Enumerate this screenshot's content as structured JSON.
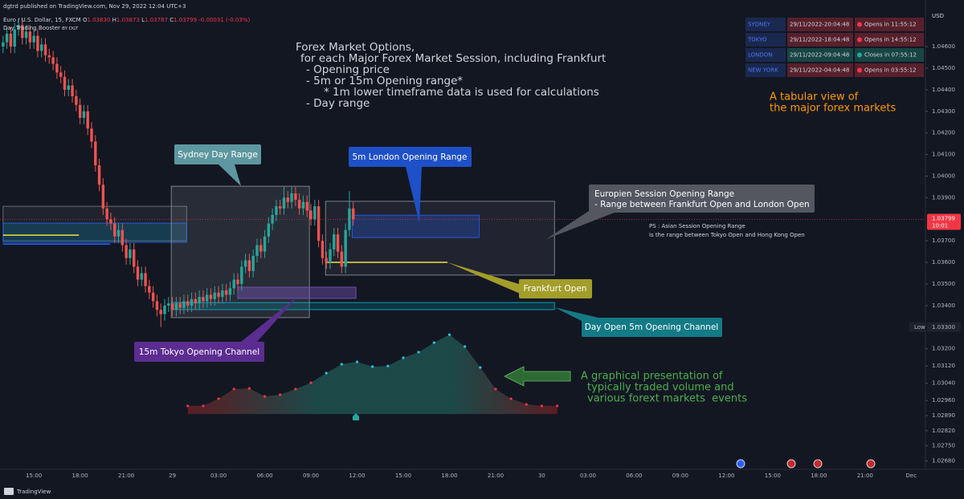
{
  "header": {
    "publisher": "dgtrd published on TradingView.com, Nov 29, 2022 12:04 UTC+3",
    "symbol": "Euro / U.S. Dollar, 15, FXCM",
    "ohlc": [
      [
        "O",
        "1.03830"
      ],
      [
        "H",
        "1.03873"
      ],
      [
        "L",
        "1.03787"
      ],
      [
        "C",
        "1.03799"
      ]
    ],
    "change": "-0.00031 (-0.03%)",
    "indicator": "Day Trading Booster",
    "indicator_by": "BY DGT",
    "currency": "USD"
  },
  "table": {
    "rows": [
      [
        "SYDNEY",
        "29/11/2022-20:04:48",
        "Opens in 11:55:12"
      ],
      [
        "TOKYO",
        "29/11/2022-18:04:48",
        "Opens in 14:55:12"
      ],
      [
        "LONDON",
        "29/11/2022-09:04:48",
        "Closes in 07:55:12"
      ],
      [
        "NEW YORK",
        "29/11/2022-04:04:48",
        "Opens in 03:55:12"
      ]
    ],
    "status_colors": [
      "#f23645",
      "#f23645",
      "#22ab94",
      "#f23645"
    ]
  },
  "annotations": {
    "options": [
      "Forex Market Options,",
      "for each Major Forex Market Session, including Frankfurt",
      "- Opening price",
      "- 5m or 15m Opening range*",
      "* 1m lower timeframe data is used for calculations",
      "- Day range"
    ],
    "sydney": "Sydney Day Range",
    "london": "5m London Opening Range",
    "europe": [
      "Europien Session Opening Range",
      "- Range between Frankfurt Open and London Open"
    ],
    "ps": [
      "PS : Asian Session Opening Range",
      "is the range between Tokyo Open and Hong Kong Open"
    ],
    "frankfurt": "Frankfurt Open",
    "day_open": "Day Open 5m Opening Channel",
    "tokyo": "15m Tokyo Opening Channel",
    "graphical": [
      "A graphical presentation of",
      "typically traded volume and",
      "various forext markets  events"
    ],
    "tabular": [
      "A tabular view of",
      "the major forex markets"
    ]
  },
  "footer": "TradingView",
  "chart_data": {
    "type": "candlestick",
    "categories": [
      null,
      null,
      null,
      null,
      null,
      null,
      null,
      null,
      null,
      null,
      null,
      null,
      null,
      null,
      null,
      null,
      null,
      null,
      null,
      null,
      null,
      null,
      null,
      null,
      null,
      null,
      null,
      null,
      null,
      null,
      null,
      null,
      null,
      null,
      null,
      null,
      null,
      null,
      null,
      null,
      null,
      null,
      null,
      null,
      null,
      null,
      null,
      null,
      null,
      null,
      null,
      null,
      null,
      null,
      null,
      null,
      null,
      null,
      null,
      null,
      null,
      null,
      null,
      null,
      null,
      null,
      null,
      null,
      null,
      null,
      null,
      null,
      null,
      null,
      null,
      null,
      null,
      null,
      null,
      null,
      null,
      null,
      null,
      null,
      null,
      null,
      null,
      null,
      null,
      null,
      null,
      null
    ],
    "open": [
      1.046,
      1.0462,
      1.0466,
      1.046,
      1.0468,
      1.047,
      1.0464,
      1.0467,
      1.0462,
      1.0465,
      1.0458,
      1.0461,
      1.0456,
      1.0455,
      1.0452,
      1.0448,
      1.0446,
      1.044,
      1.0442,
      1.0437,
      1.0433,
      1.0427,
      1.043,
      1.0422,
      1.0416,
      1.0405,
      1.0396,
      1.0385,
      1.038,
      1.0378,
      1.0372,
      1.0375,
      1.0368,
      1.0362,
      1.0366,
      1.0358,
      1.0352,
      1.0355,
      1.0349,
      1.0346,
      1.0342,
      1.0338,
      1.0336,
      1.034,
      1.0341,
      1.0338,
      1.0341,
      1.0339,
      1.0342,
      1.034,
      1.0343,
      1.0341,
      1.0344,
      1.0342,
      1.0345,
      1.0343,
      1.0346,
      1.0344,
      1.0347,
      1.0345,
      1.0348,
      1.0352,
      1.035,
      1.0358,
      1.0361,
      1.0356,
      1.0363,
      1.0368,
      1.0365,
      1.0372,
      1.0378,
      1.0382,
      1.0386,
      1.0385,
      1.039,
      1.0388,
      1.0392,
      1.0389,
      1.0385,
      1.0388,
      1.0384,
      1.038,
      1.0386,
      1.037,
      1.0362,
      1.036,
      1.0366,
      1.0373,
      1.0365,
      1.0358,
      1.0375,
      1.0385
    ],
    "high": [
      1.0465,
      1.0469,
      1.0469,
      1.0471,
      1.0473,
      1.0473,
      1.047,
      1.047,
      1.0468,
      1.0468,
      1.0464,
      1.0464,
      1.0459,
      1.0458,
      1.0455,
      1.0451,
      1.0449,
      1.0445,
      1.0445,
      1.044,
      1.0436,
      1.0433,
      1.0433,
      1.0425,
      1.0419,
      1.0408,
      1.0399,
      1.0388,
      1.0383,
      1.0381,
      1.0378,
      1.0378,
      1.0371,
      1.0369,
      1.0369,
      1.0361,
      1.0358,
      1.0358,
      1.0352,
      1.0349,
      1.0345,
      1.0341,
      1.0343,
      1.0344,
      1.0344,
      1.0344,
      1.0344,
      1.0345,
      1.0345,
      1.0346,
      1.0346,
      1.0347,
      1.0347,
      1.0348,
      1.0348,
      1.0349,
      1.0349,
      1.035,
      1.035,
      1.0351,
      1.0355,
      1.0355,
      1.0361,
      1.0364,
      1.0364,
      1.0366,
      1.0371,
      1.0371,
      1.0375,
      1.0381,
      1.0385,
      1.0389,
      1.0389,
      1.0395,
      1.0393,
      1.0395,
      1.0395,
      1.0392,
      1.0391,
      1.0391,
      1.0387,
      1.0389,
      1.0389,
      1.0373,
      1.0365,
      1.0369,
      1.0376,
      1.0376,
      1.0368,
      1.0378,
      1.0393,
      1.0388
    ],
    "low": [
      1.0457,
      1.0459,
      1.0457,
      1.0457,
      1.0465,
      1.0461,
      1.0461,
      1.0459,
      1.0459,
      1.0455,
      1.0455,
      1.0453,
      1.0452,
      1.0449,
      1.0445,
      1.0443,
      1.0437,
      1.0437,
      1.0434,
      1.043,
      1.0424,
      1.0424,
      1.0419,
      1.0413,
      1.0402,
      1.0393,
      1.0382,
      1.0377,
      1.0375,
      1.0369,
      1.0369,
      1.0365,
      1.0359,
      1.0359,
      1.0355,
      1.0349,
      1.0349,
      1.0346,
      1.0343,
      1.0339,
      1.0335,
      1.033,
      1.0333,
      1.0337,
      1.0335,
      1.0335,
      1.0336,
      1.0336,
      1.0337,
      1.0337,
      1.0338,
      1.0338,
      1.0339,
      1.0339,
      1.034,
      1.034,
      1.0341,
      1.0341,
      1.0342,
      1.0342,
      1.0345,
      1.0347,
      1.0347,
      1.0355,
      1.0353,
      1.0353,
      1.036,
      1.0362,
      1.0362,
      1.0369,
      1.0375,
      1.0379,
      1.0382,
      1.0382,
      1.0385,
      1.0385,
      1.0386,
      1.0382,
      1.0382,
      1.0381,
      1.0377,
      1.0377,
      1.0367,
      1.0359,
      1.0357,
      1.0357,
      1.0363,
      1.0362,
      1.0355,
      1.0355,
      1.0372,
      1.0377
    ],
    "close": [
      1.0462,
      1.0466,
      1.046,
      1.0468,
      1.047,
      1.0464,
      1.0467,
      1.0462,
      1.0465,
      1.0458,
      1.0461,
      1.0456,
      1.0455,
      1.0452,
      1.0448,
      1.0446,
      1.044,
      1.0442,
      1.0437,
      1.0433,
      1.0427,
      1.043,
      1.0422,
      1.0416,
      1.0405,
      1.0396,
      1.0385,
      1.038,
      1.0378,
      1.0372,
      1.0375,
      1.0368,
      1.0362,
      1.0366,
      1.0358,
      1.0352,
      1.0355,
      1.0349,
      1.0346,
      1.0342,
      1.0338,
      1.0336,
      1.034,
      1.0341,
      1.0338,
      1.0341,
      1.0339,
      1.0342,
      1.034,
      1.0343,
      1.0341,
      1.0344,
      1.0342,
      1.0345,
      1.0343,
      1.0346,
      1.0344,
      1.0347,
      1.0345,
      1.0348,
      1.0352,
      1.035,
      1.0358,
      1.0361,
      1.0356,
      1.0363,
      1.0368,
      1.0365,
      1.0372,
      1.0378,
      1.0382,
      1.0386,
      1.0385,
      1.039,
      1.0388,
      1.0392,
      1.0389,
      1.0385,
      1.0388,
      1.0384,
      1.038,
      1.0386,
      1.037,
      1.0362,
      1.036,
      1.0366,
      1.0373,
      1.0365,
      1.0358,
      1.0375,
      1.0385,
      1.038
    ],
    "colors": {
      "up": "#26a69a",
      "down": "#ef5350"
    },
    "xlim": [
      -0.8,
      239.7
    ],
    "xticks": [
      {
        "value": 8,
        "label": "15:00"
      },
      {
        "value": 20,
        "label": "18:00"
      },
      {
        "value": 32,
        "label": "21:00"
      },
      {
        "value": 44,
        "label": "29"
      },
      {
        "value": 56,
        "label": "03:00"
      },
      {
        "value": 68,
        "label": "06:00"
      },
      {
        "value": 80,
        "label": "09:00"
      },
      {
        "value": 92,
        "label": "12:00"
      },
      {
        "value": 104,
        "label": "15:00"
      },
      {
        "value": 116,
        "label": "18:00"
      },
      {
        "value": 128,
        "label": "21:00"
      },
      {
        "value": 140,
        "label": "30"
      },
      {
        "value": 152,
        "label": "03:00"
      },
      {
        "value": 164,
        "label": "06:00"
      },
      {
        "value": 176,
        "label": "09:00"
      },
      {
        "value": 188,
        "label": "12:00"
      },
      {
        "value": 200,
        "label": "15:00"
      },
      {
        "value": 212,
        "label": "18:00"
      },
      {
        "value": 224,
        "label": "21:00"
      },
      {
        "value": 236,
        "label": "Dec"
      }
    ],
    "ylim": [
      1.02641,
      1.04816
    ],
    "yticks": [
      {
        "value": 1.046,
        "label": "1.04600"
      },
      {
        "value": 1.045,
        "label": "1.04500"
      },
      {
        "value": 1.044,
        "label": "1.04400"
      },
      {
        "value": 1.043,
        "label": "1.04300"
      },
      {
        "value": 1.042,
        "label": "1.04200"
      },
      {
        "value": 1.041,
        "label": "1.04100"
      },
      {
        "value": 1.04,
        "label": "1.04000"
      },
      {
        "value": 1.039,
        "label": "1.03900"
      },
      {
        "value": 1.037,
        "label": "1.03700"
      },
      {
        "value": 1.036,
        "label": "1.03600"
      },
      {
        "value": 1.035,
        "label": "1.03500"
      },
      {
        "value": 1.034,
        "label": "1.03400"
      },
      {
        "value": 1.032,
        "label": "1.03200"
      },
      {
        "value": 1.0312,
        "label": "1.03120"
      },
      {
        "value": 1.0304,
        "label": "1.03040"
      },
      {
        "value": 1.0296,
        "label": "1.02960"
      },
      {
        "value": 1.0289,
        "label": "1.02890"
      },
      {
        "value": 1.0282,
        "label": "1.02820"
      },
      {
        "value": 1.0275,
        "label": "1.02750"
      },
      {
        "value": 1.0268,
        "label": "1.02680"
      }
    ],
    "grid": false,
    "last_price": 1.03799,
    "last_price_color": "#f23645",
    "countdown": "10:01",
    "low_marker": {
      "text": "Low",
      "value": 1.033,
      "label": "1.03300"
    },
    "overlays": [
      {
        "kind": "box",
        "start": 0,
        "end": 47.7,
        "high": 1.0386,
        "low": 1.037,
        "stroke": "#787b86",
        "fill": "rgba(120,123,134,0.12)"
      },
      {
        "kind": "box",
        "start": 0,
        "end": 47.7,
        "high": 1.03782,
        "low": 1.03693,
        "stroke": "#2962ff",
        "fill": "rgba(0,150,200,0.22)"
      },
      {
        "kind": "line",
        "start": 0,
        "end": 19.7,
        "value": 1.03726,
        "color": "#f0e040"
      },
      {
        "kind": "line",
        "start": 0,
        "end": 27.8,
        "value": 1.03685,
        "color": "#2962ff"
      },
      {
        "kind": "box",
        "start": 43.7,
        "end": 79.6,
        "high": 1.03953,
        "low": 1.03344,
        "stroke": "#9598a1",
        "fill": "rgba(150,150,160,0.17)"
      },
      {
        "kind": "box",
        "start": 61.0,
        "end": 91.7,
        "high": 1.03485,
        "low": 1.03433,
        "stroke": "#7e57c2",
        "fill": "rgba(126,87,194,0.4)"
      },
      {
        "kind": "box",
        "start": 43.7,
        "end": 143.3,
        "high": 1.03414,
        "low": 1.03381,
        "stroke": "#00bcd4",
        "fill": "rgba(0,188,212,0.18)"
      },
      {
        "kind": "box",
        "start": 83.8,
        "end": 143.3,
        "high": 1.03883,
        "low": 1.03541,
        "stroke": "#9598a1",
        "fill": "rgba(120,123,134,0.14)"
      },
      {
        "kind": "box",
        "start": 90.7,
        "end": 123.7,
        "high": 1.03819,
        "low": 1.03715,
        "stroke": "#2962ff",
        "fill": "rgba(41,98,255,0.25)"
      },
      {
        "kind": "line",
        "start": 83.8,
        "end": 115.5,
        "value": 1.036,
        "color": "#f0e040"
      }
    ],
    "profile": {
      "x": [
        48,
        52,
        56,
        60,
        64,
        68,
        72,
        76,
        80,
        84,
        88,
        92,
        96,
        100,
        104,
        108,
        112,
        116,
        120,
        124,
        128,
        132,
        136,
        140,
        144
      ],
      "values": [
        1.02935,
        1.02935,
        1.02968,
        1.03013,
        1.03016,
        1.02979,
        1.02987,
        1.03013,
        1.03042,
        1.03087,
        1.03128,
        1.03139,
        1.03117,
        1.0312,
        1.03158,
        1.03184,
        1.03228,
        1.03265,
        1.0321,
        1.03113,
        1.03013,
        1.02968,
        1.02942,
        1.02935,
        1.02935
      ],
      "base": 1.02897,
      "point_colors": [
        "#f23645",
        "#f23645",
        "#f23645",
        "#f23645",
        "#f23645",
        "#f23645",
        "#f23645",
        "#f23645",
        "#f23645",
        "#26c6da",
        "#26c6da",
        "#26c6da",
        "#26c6da",
        "#26c6da",
        "#26c6da",
        "#26c6da",
        "#26c6da",
        "#26c6da",
        "#26c6da",
        "#26c6da",
        "#f23645",
        "#f23645",
        "#f23645",
        "#f23645",
        "#f23645"
      ]
    }
  }
}
